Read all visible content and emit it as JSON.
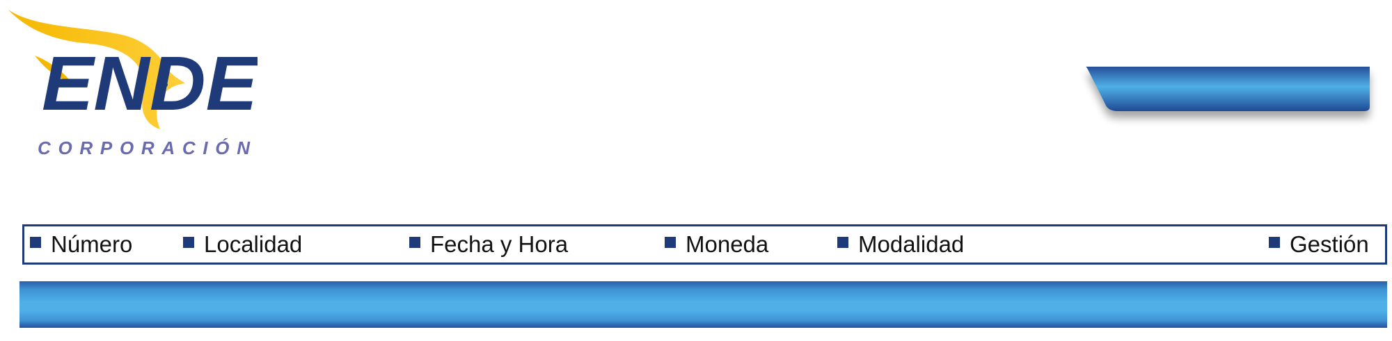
{
  "logo": {
    "brand": "ENDE",
    "subtitle": "CORPORACIÓN"
  },
  "header": {
    "fields": [
      {
        "label": "Número"
      },
      {
        "label": "Localidad"
      },
      {
        "label": "Fecha y Hora"
      },
      {
        "label": "Moneda"
      },
      {
        "label": "Modalidad"
      },
      {
        "label": "Gestión"
      }
    ]
  },
  "colors": {
    "brand_navy": "#1e3a78",
    "brand_yellow": "#f5b800",
    "subtitle_purple": "#6a6aae",
    "band_blue": "#4fb0e6"
  },
  "icons": {
    "logo_bird": "phoenix-bird-icon",
    "field_bullet": "square-bullet-icon"
  }
}
